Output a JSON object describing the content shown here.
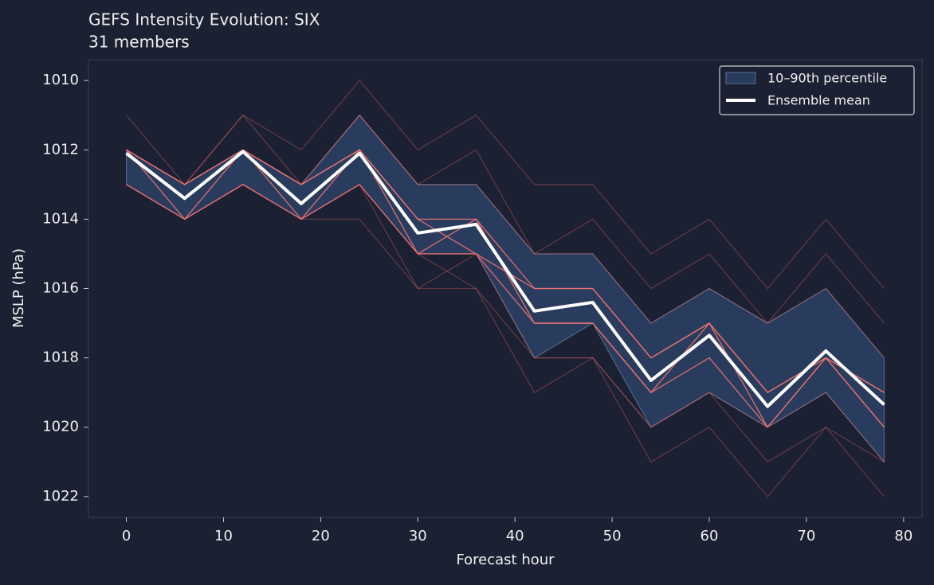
{
  "chart_data": {
    "type": "line",
    "title": "GEFS Intensity Evolution: SIX",
    "subtitle": "31 members",
    "xlabel": "Forecast hour",
    "ylabel": "MSLP (hPa)",
    "x": [
      0,
      6,
      12,
      18,
      24,
      30,
      36,
      42,
      48,
      54,
      60,
      66,
      72,
      78
    ],
    "xlim": [
      -3.9,
      81.9
    ],
    "xticks": [
      0,
      10,
      20,
      30,
      40,
      50,
      60,
      70,
      80
    ],
    "ylim": [
      1009.4,
      1022.6
    ],
    "yticks": [
      1010,
      1012,
      1014,
      1016,
      1018,
      1020,
      1022
    ],
    "y_inverted": true,
    "legend_position": "upper right",
    "members": [
      {
        "color": "#e06666",
        "opacity": 0.35,
        "values": [
          1011,
          1013,
          1011,
          1012,
          1010,
          1012,
          1011,
          1013,
          1013,
          1015,
          1014,
          1016,
          1014,
          1016
        ]
      },
      {
        "color": "#e06666",
        "opacity": 0.35,
        "values": [
          1012,
          1013,
          1011,
          1013,
          1011,
          1013,
          1012,
          1015,
          1014,
          1016,
          1015,
          1017,
          1015,
          1017
        ]
      },
      {
        "color": "#e06666",
        "opacity": 0.35,
        "values": [
          1013,
          1014,
          1013,
          1014,
          1014,
          1016,
          1016,
          1019,
          1018,
          1021,
          1020,
          1022,
          1020,
          1022
        ]
      },
      {
        "color": "#e06666",
        "opacity": 0.35,
        "values": [
          1013,
          1014,
          1013,
          1014,
          1013,
          1016,
          1015,
          1018,
          1018,
          1020,
          1019,
          1021,
          1020,
          1021
        ]
      },
      {
        "color": "#e06666",
        "opacity": 0.35,
        "values": [
          1012,
          1013,
          1012,
          1013,
          1011,
          1013,
          1013,
          1015,
          1015,
          1017,
          1016,
          1017,
          1016,
          1018
        ]
      },
      {
        "color": "#e06666",
        "opacity": 0.35,
        "values": [
          1013,
          1014,
          1013,
          1014,
          1013,
          1015,
          1016,
          1018,
          1018,
          1020,
          1019,
          1020,
          1019,
          1021
        ]
      },
      {
        "color": "#f07272",
        "opacity": 0.9,
        "values": [
          1012,
          1013,
          1012,
          1013,
          1012,
          1014,
          1014,
          1016,
          1016,
          1018,
          1017,
          1019,
          1018,
          1019
        ]
      },
      {
        "color": "#f07272",
        "opacity": 0.9,
        "values": [
          1012,
          1014,
          1012,
          1014,
          1012,
          1015,
          1015,
          1017,
          1017,
          1019,
          1018,
          1020,
          1018,
          1020
        ]
      },
      {
        "color": "#f07272",
        "opacity": 0.9,
        "values": [
          1013,
          1014,
          1013,
          1014,
          1013,
          1015,
          1014,
          1017,
          1017,
          1019,
          1017,
          1020,
          1018,
          1019
        ]
      },
      {
        "color": "#f07272",
        "opacity": 0.9,
        "values": [
          1012,
          1013,
          1012,
          1013,
          1012,
          1014,
          1015,
          1016,
          1016,
          1018,
          1017,
          1019,
          1018,
          1020
        ]
      }
    ],
    "band": {
      "name": "10–90th percentile",
      "color": "#35507a",
      "lower": [
        1012,
        1013,
        1012,
        1013,
        1011,
        1013,
        1013,
        1015,
        1015,
        1017,
        1016,
        1017,
        1016,
        1018
      ],
      "upper": [
        1013,
        1014,
        1013,
        1014,
        1013,
        1015,
        1015,
        1018,
        1017,
        1020,
        1019,
        1020,
        1019,
        1021
      ]
    },
    "mean": {
      "name": "Ensemble mean",
      "color": "#ffffff",
      "values": [
        1012.1,
        1013.4,
        1012.05,
        1013.55,
        1012.1,
        1014.4,
        1014.15,
        1016.65,
        1016.4,
        1018.65,
        1017.35,
        1019.4,
        1017.8,
        1019.35
      ]
    }
  }
}
